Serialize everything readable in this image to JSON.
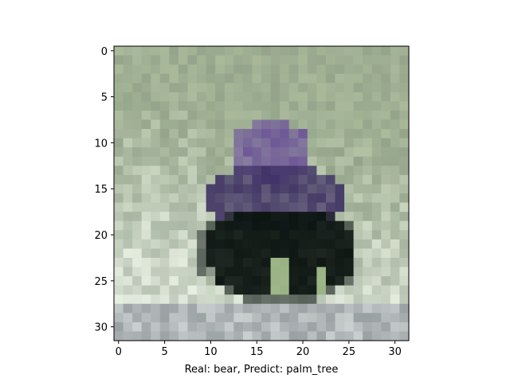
{
  "figure": {
    "caption": "Real: bear, Predict: palm_tree",
    "real_label": "bear",
    "predicted_label": "palm_tree"
  },
  "image": {
    "description_grid": "32x32 low-resolution photo",
    "grid_size": 32
  },
  "axes": {
    "xticks": [
      0,
      5,
      10,
      15,
      20,
      25,
      30
    ],
    "yticks": [
      0,
      5,
      10,
      15,
      20,
      25,
      30
    ],
    "xlim": [
      -0.5,
      31.5
    ],
    "ylim": [
      31.5,
      -0.5
    ]
  },
  "palette": {
    "bg_green": "#a9b99a",
    "bg_light": "#e6eee0",
    "bear_dark": "#0b1410",
    "bear_purple": "#3d2f63",
    "bear_violet": "#6a4f9a"
  }
}
